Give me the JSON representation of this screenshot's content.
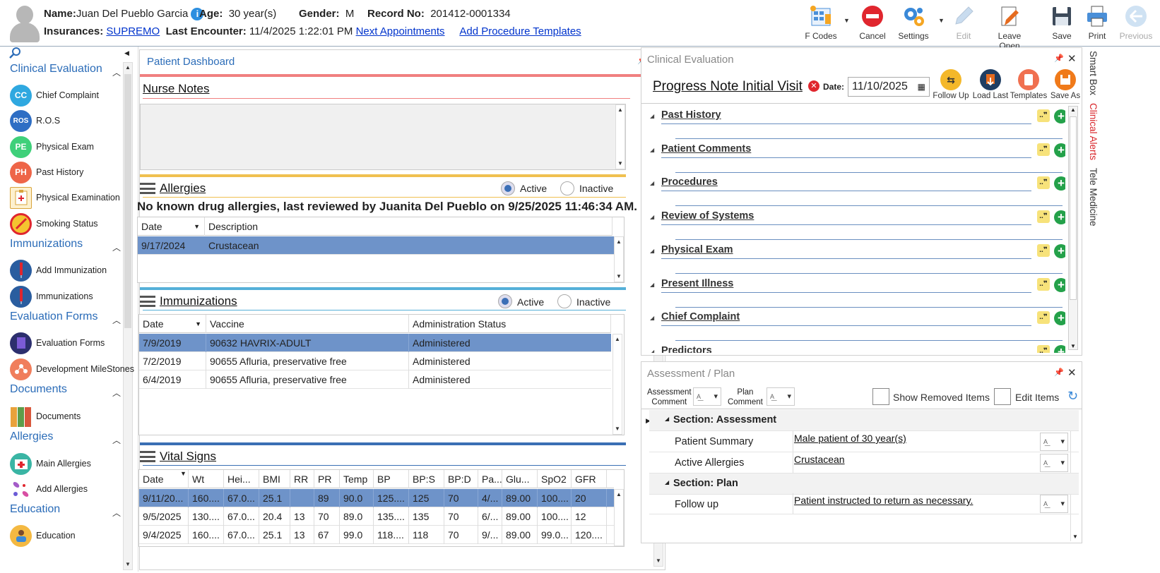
{
  "header": {
    "name_label": "Name:",
    "name": "Juan Del Pueblo Garcia",
    "info": "i",
    "age_label": "Age:",
    "age": "30 year(s)",
    "gender_label": "Gender:",
    "gender": "M",
    "record_label": "Record No:",
    "record": "201412-0001334",
    "insurances_label": "Insurances:",
    "insurance": "SUPREMO",
    "last_encounter_label": "Last Encounter:",
    "last_encounter": "11/4/2025 1:22:01 PM",
    "next_appointments": "Next Appointments",
    "add_procedure_templates": "Add Procedure Templates"
  },
  "toolbar": {
    "fcodes": "F Codes",
    "cancel": "Cancel",
    "settings": "Settings",
    "edit": "Edit",
    "leave_open": "Leave Open",
    "save": "Save",
    "print": "Print",
    "previous": "Previous"
  },
  "sidebar": {
    "sections": [
      {
        "title": "Clinical Evaluation",
        "items": [
          {
            "icon": "CC",
            "label": "Chief Complaint"
          },
          {
            "icon": "ROS",
            "label": "R.O.S"
          },
          {
            "icon": "PE",
            "label": "Physical Exam"
          },
          {
            "icon": "PH",
            "label": "Past History"
          },
          {
            "icon": "clipboard-icon",
            "label": "Physical Examination"
          },
          {
            "icon": "no-smoking-icon",
            "label": "Smoking Status"
          }
        ]
      },
      {
        "title": "Immunizations",
        "items": [
          {
            "icon": "syringe-icon",
            "label": "Add Immunization"
          },
          {
            "icon": "syringe-icon",
            "label": "Immunizations"
          }
        ]
      },
      {
        "title": "Evaluation Forms",
        "items": [
          {
            "icon": "form-icon",
            "label": "Evaluation Forms"
          },
          {
            "icon": "milestones-icon",
            "label": "Development MileStones"
          }
        ]
      },
      {
        "title": "Documents",
        "items": [
          {
            "icon": "binders-icon",
            "label": "Documents"
          }
        ]
      },
      {
        "title": "Allergies",
        "items": [
          {
            "icon": "kit-icon",
            "label": "Main Allergies"
          },
          {
            "icon": "pills-icon",
            "label": "Add Allergies"
          }
        ]
      },
      {
        "title": "Education",
        "items": [
          {
            "icon": "teacher-icon",
            "label": "Education"
          }
        ]
      }
    ]
  },
  "dashboard": {
    "title": "Patient Dashboard",
    "nurse_notes": "Nurse Notes",
    "allergies": {
      "title": "Allergies",
      "active": "Active",
      "inactive": "Inactive",
      "summary": "No known drug allergies, last reviewed by Juanita Del Pueblo on 9/25/2025 11:46:34 AM.",
      "columns": [
        "Date",
        "Description"
      ],
      "rows": [
        [
          "9/17/2024",
          "Crustacean"
        ]
      ]
    },
    "immunizations": {
      "title": "Immunizations",
      "active": "Active",
      "inactive": "Inactive",
      "columns": [
        "Date",
        "Vaccine",
        "Administration Status"
      ],
      "rows": [
        [
          "7/9/2019",
          "90632 HAVRIX-ADULT",
          "Administered"
        ],
        [
          "7/2/2019",
          "90655 Afluria, preservative free",
          "Administered"
        ],
        [
          "6/4/2019",
          "90655 Afluria, preservative free",
          "Administered"
        ]
      ]
    },
    "vitals": {
      "title": "Vital Signs",
      "columns": [
        "Date",
        "Wt",
        "Hei...",
        "BMI",
        "RR",
        "PR",
        "Temp",
        "BP",
        "BP:S",
        "BP:D",
        "Pa...",
        "Glu...",
        "SpO2",
        "GFR"
      ],
      "rows": [
        [
          "9/11/20...",
          "160....",
          "67.0...",
          "25.1",
          "",
          "89",
          "90.0",
          "125....",
          "125",
          "70",
          "4/...",
          "89.00",
          "100....",
          "20"
        ],
        [
          "9/5/2025",
          "130....",
          "67.0...",
          "20.4",
          "13",
          "70",
          "89.0",
          "135....",
          "135",
          "70",
          "6/...",
          "89.00",
          "100....",
          "12"
        ],
        [
          "9/4/2025",
          "160....",
          "67.0...",
          "25.1",
          "13",
          "67",
          "99.0",
          "118....",
          "118",
          "70",
          "9/...",
          "89.00",
          "99.0...",
          "120...."
        ]
      ]
    }
  },
  "clinical_eval": {
    "title": "Clinical Evaluation",
    "note_title": "Progress Note Initial Visit",
    "date_label": "Date:",
    "date": "11/10/2025",
    "actions": [
      "Follow Up",
      "Load Last",
      "Templates",
      "Save As"
    ],
    "sections": [
      "Past History",
      "Patient Comments",
      "Procedures",
      "Review of Systems",
      "Physical Exam",
      "Present Illness",
      "Chief Complaint",
      "Predictors"
    ]
  },
  "assessment": {
    "title": "Assessment / Plan",
    "assessment_comment": "Assessment\nComment",
    "assessment_comment_l1": "Assessment",
    "assessment_comment_l2": "Comment",
    "plan_comment_l1": "Plan",
    "plan_comment_l2": "Comment",
    "show_removed": "Show Removed Items",
    "edit_items": "Edit Items",
    "section_assessment": "Section: Assessment",
    "patient_summary_label": "Patient Summary",
    "patient_summary": "Male patient of 30 year(s)",
    "active_allergies_label": "Active Allergies",
    "active_allergies": "Crustacean",
    "section_plan": "Section: Plan",
    "follow_up_label": "Follow up",
    "follow_up": "Patient instructed to return as necessary."
  },
  "right_tabs": [
    "Smart Box",
    "Clinical Alerts",
    "Tele Medicine"
  ],
  "colors": {
    "accent": "#2b6cb8",
    "selected_row": "#6e93c9",
    "alert": "#d9252a"
  }
}
